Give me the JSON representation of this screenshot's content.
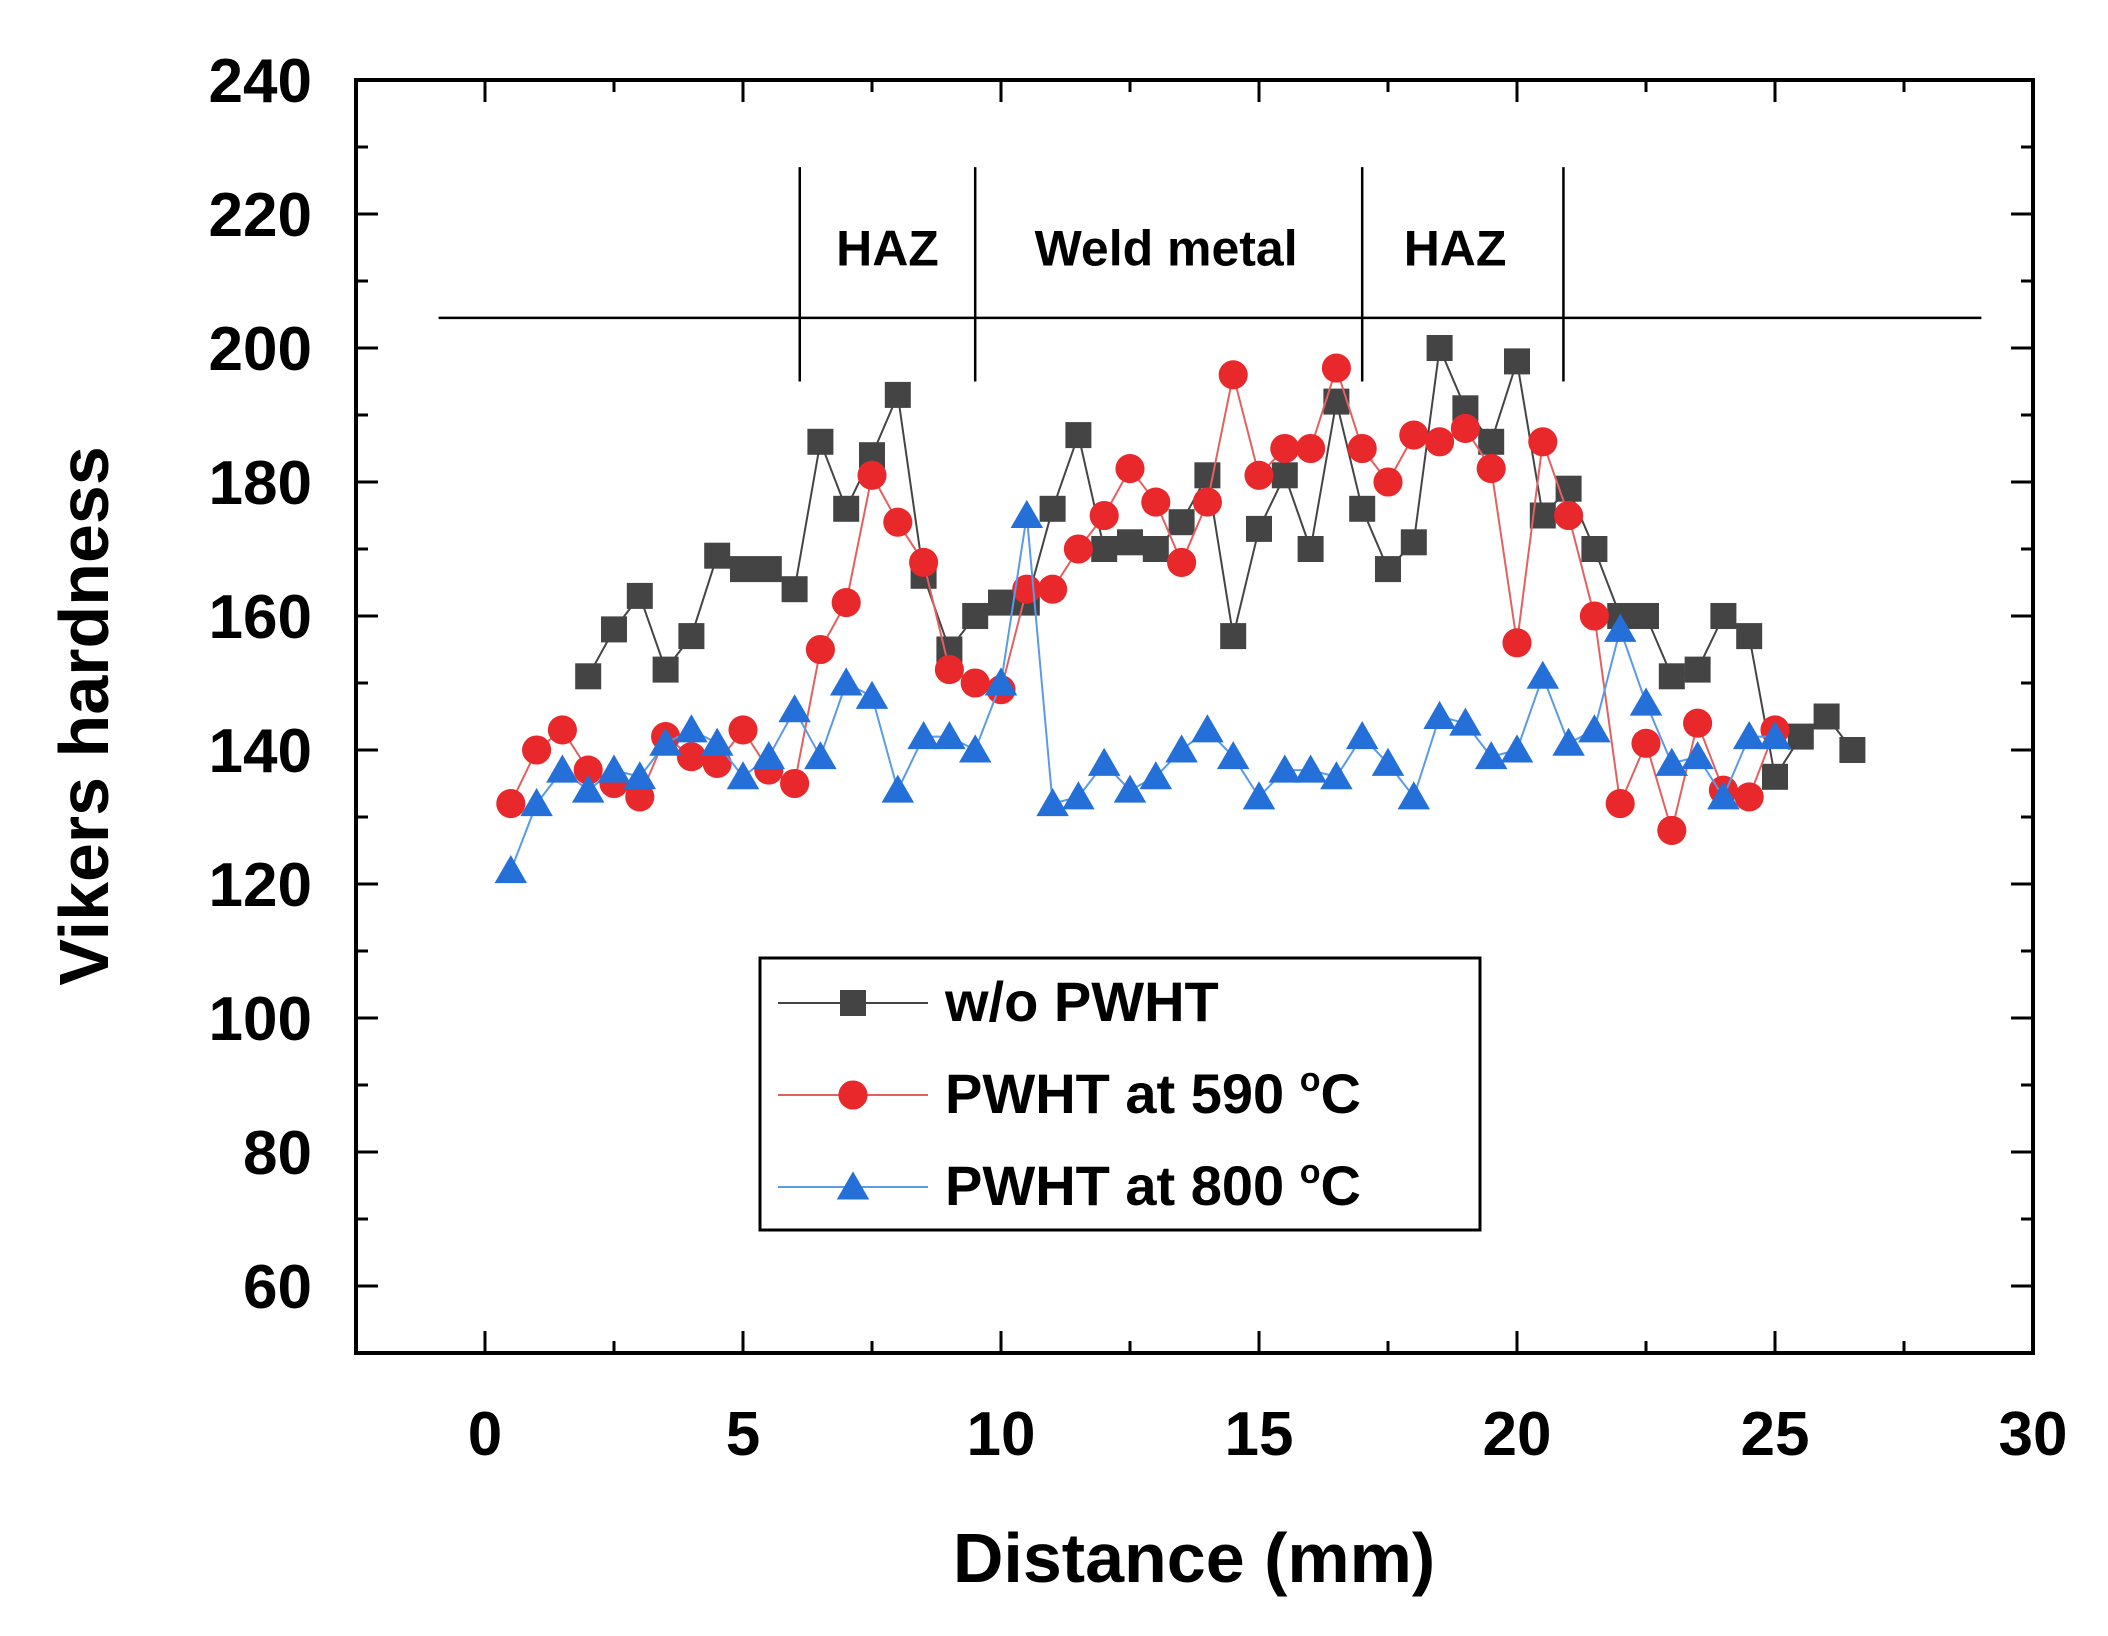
{
  "chart_data": {
    "type": "line",
    "xlabel": "Distance (mm)",
    "ylabel": "Vikers hardness",
    "xlim": [
      -2.5,
      30
    ],
    "ylim": [
      50,
      240
    ],
    "xticks": [
      0,
      5,
      10,
      15,
      20,
      25,
      30
    ],
    "yticks": [
      60,
      80,
      100,
      120,
      140,
      160,
      180,
      200,
      220,
      240
    ],
    "grid": false,
    "legend_position": "lower-center",
    "zones": {
      "line_y": 204.5,
      "line_x_range": [
        -0.9,
        29
      ],
      "dividers": [
        6.1,
        9.5,
        17.0,
        20.9
      ],
      "divider_y_range": [
        195,
        227
      ],
      "labels": [
        {
          "text": "HAZ",
          "x": 7.8,
          "y": 215
        },
        {
          "text": "Weld metal",
          "x": 13.2,
          "y": 215
        },
        {
          "text": "HAZ",
          "x": 18.8,
          "y": 215
        }
      ]
    },
    "series": [
      {
        "name": "w/o PWHT",
        "color": "#444444",
        "marker": "square",
        "x": [
          2,
          2.5,
          3,
          3.5,
          4,
          4.5,
          5,
          5.5,
          6,
          6.5,
          7,
          7.5,
          8,
          8.5,
          9,
          9.5,
          10,
          10.5,
          11,
          11.5,
          12,
          12.5,
          13,
          13.5,
          14,
          14.5,
          15,
          15.5,
          16,
          16.5,
          17,
          17.5,
          18,
          18.5,
          19,
          19.5,
          20,
          20.5,
          21,
          21.5,
          22,
          22.5,
          23,
          23.5,
          24,
          24.5,
          25,
          25.5,
          26,
          26.5
        ],
        "y": [
          151,
          158,
          163,
          152,
          157,
          169,
          167,
          167,
          164,
          186,
          176,
          184,
          193,
          166,
          155,
          160,
          162,
          162,
          176,
          187,
          170,
          171,
          170,
          174,
          181,
          157,
          173,
          181,
          170,
          192,
          176,
          167,
          171,
          200,
          191,
          186,
          198,
          175,
          179,
          170,
          160,
          160,
          151,
          152,
          160,
          157,
          136,
          142,
          145,
          140
        ]
      },
      {
        "name": "PWHT at 590 °C",
        "label_main": "PWHT at 590 ",
        "label_sup": "o",
        "label_unit": "C",
        "color": "#e8282a",
        "line_color": "#e46060",
        "marker": "circle",
        "x": [
          0.5,
          1,
          1.5,
          2,
          2.5,
          3,
          3.5,
          4,
          4.5,
          5,
          5.5,
          6,
          6.5,
          7,
          7.5,
          8,
          8.5,
          9,
          9.5,
          10,
          10.5,
          11,
          11.5,
          12,
          12.5,
          13,
          13.5,
          14,
          14.5,
          15,
          15.5,
          16,
          16.5,
          17,
          17.5,
          18,
          18.5,
          19,
          19.5,
          20,
          20.5,
          21,
          21.5,
          22,
          22.5,
          23,
          23.5,
          24,
          24.5,
          25
        ],
        "y": [
          132,
          140,
          143,
          137,
          135,
          133,
          142,
          139,
          138,
          143,
          137,
          135,
          155,
          162,
          181,
          174,
          168,
          152,
          150,
          149,
          164,
          164,
          170,
          175,
          182,
          177,
          168,
          177,
          196,
          181,
          185,
          185,
          197,
          185,
          180,
          187,
          186,
          188,
          182,
          156,
          186,
          175,
          160,
          132,
          141,
          128,
          144,
          134,
          133,
          143
        ]
      },
      {
        "name": "PWHT at 800 °C",
        "label_main": "PWHT at 800 ",
        "label_sup": "o",
        "label_unit": "C",
        "color": "#2470d8",
        "line_color": "#5a9ae8",
        "marker": "triangle",
        "x": [
          0.5,
          1,
          1.5,
          2,
          2.5,
          3,
          3.5,
          4,
          4.5,
          5,
          5.5,
          6,
          6.5,
          7,
          7.5,
          8,
          8.5,
          9,
          9.5,
          10,
          10.5,
          11,
          11.5,
          12,
          12.5,
          13,
          13.5,
          14,
          14.5,
          15,
          15.5,
          16,
          16.5,
          17,
          17.5,
          18,
          18.5,
          19,
          19.5,
          20,
          20.5,
          21,
          21.5,
          22,
          22.5,
          23,
          23.5,
          24,
          24.5,
          25
        ],
        "y": [
          122,
          132,
          137,
          134,
          137,
          136,
          141,
          143,
          141,
          136,
          139,
          146,
          139,
          150,
          148,
          134,
          142,
          142,
          140,
          150,
          175,
          132,
          133,
          138,
          134,
          136,
          140,
          143,
          139,
          133,
          137,
          137,
          136,
          142,
          138,
          133,
          145,
          144,
          139,
          140,
          151,
          141,
          143,
          158,
          147,
          138,
          139,
          133,
          142,
          142
        ]
      }
    ]
  }
}
